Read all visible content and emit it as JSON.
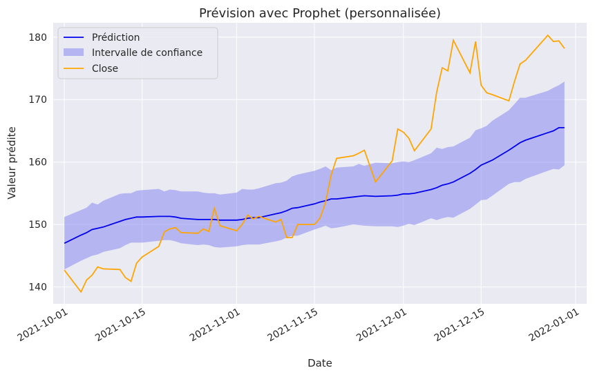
{
  "chart_data": {
    "type": "line",
    "title": "Prévision avec Prophet (personnalisée)",
    "xlabel": "Date",
    "ylabel": "Valeur prédite",
    "xlim": [
      "2021-09-29",
      "2022-01-03"
    ],
    "ylim": [
      137.3,
      182.3
    ],
    "x_ticks": [
      "2021-10-01",
      "2021-10-15",
      "2021-11-01",
      "2021-11-15",
      "2021-12-01",
      "2021-12-15",
      "2022-01-01"
    ],
    "y_ticks": [
      140,
      150,
      160,
      170,
      180
    ],
    "grid": true,
    "legend_position": "top-left",
    "colors": {
      "prediction": "#0000ee",
      "interval": "#8080f0",
      "close": "#ffa500",
      "plot_bg": "#eaeaf2",
      "grid": "#ffffff"
    },
    "legend": [
      "Prédiction",
      "Intervalle de confiance",
      "Close"
    ],
    "series": [
      {
        "name": "Prédiction",
        "x": [
          "2021-10-01",
          "2021-10-04",
          "2021-10-05",
          "2021-10-06",
          "2021-10-07",
          "2021-10-08",
          "2021-10-11",
          "2021-10-12",
          "2021-10-13",
          "2021-10-14",
          "2021-10-15",
          "2021-10-18",
          "2021-10-19",
          "2021-10-20",
          "2021-10-21",
          "2021-10-22",
          "2021-10-25",
          "2021-10-26",
          "2021-10-27",
          "2021-10-28",
          "2021-10-29",
          "2021-11-01",
          "2021-11-02",
          "2021-11-03",
          "2021-11-04",
          "2021-11-05",
          "2021-11-08",
          "2021-11-09",
          "2021-11-10",
          "2021-11-11",
          "2021-11-12",
          "2021-11-15",
          "2021-11-16",
          "2021-11-17",
          "2021-11-18",
          "2021-11-19",
          "2021-11-22",
          "2021-11-23",
          "2021-11-24",
          "2021-11-26",
          "2021-11-29",
          "2021-11-30",
          "2021-12-01",
          "2021-12-02",
          "2021-12-03",
          "2021-12-06",
          "2021-12-07",
          "2021-12-08",
          "2021-12-09",
          "2021-12-10",
          "2021-12-13",
          "2021-12-14",
          "2021-12-15",
          "2021-12-16",
          "2021-12-17",
          "2021-12-20",
          "2021-12-21",
          "2021-12-22",
          "2021-12-23",
          "2021-12-27",
          "2021-12-28",
          "2021-12-29",
          "2021-12-30"
        ],
        "values": [
          147.0,
          148.3,
          148.7,
          149.2,
          149.4,
          149.6,
          150.5,
          150.8,
          151.0,
          151.2,
          151.2,
          151.3,
          151.3,
          151.3,
          151.2,
          151.0,
          150.8,
          150.8,
          150.8,
          150.8,
          150.7,
          150.7,
          150.8,
          151.0,
          151.1,
          151.1,
          151.7,
          151.9,
          152.2,
          152.6,
          152.7,
          153.3,
          153.6,
          153.8,
          154.1,
          154.1,
          154.4,
          154.5,
          154.6,
          154.5,
          154.6,
          154.7,
          154.9,
          154.9,
          155.0,
          155.6,
          155.9,
          156.3,
          156.5,
          156.8,
          158.2,
          158.8,
          159.5,
          159.9,
          160.3,
          161.9,
          162.5,
          163.1,
          163.5,
          164.7,
          165.0,
          165.5,
          165.5
        ]
      },
      {
        "name": "Intervalle de confiance",
        "x": [
          "2021-10-01",
          "2021-10-04",
          "2021-10-05",
          "2021-10-06",
          "2021-10-07",
          "2021-10-08",
          "2021-10-11",
          "2021-10-12",
          "2021-10-13",
          "2021-10-14",
          "2021-10-15",
          "2021-10-18",
          "2021-10-19",
          "2021-10-20",
          "2021-10-21",
          "2021-10-22",
          "2021-10-25",
          "2021-10-26",
          "2021-10-27",
          "2021-10-28",
          "2021-10-29",
          "2021-11-01",
          "2021-11-02",
          "2021-11-03",
          "2021-11-04",
          "2021-11-05",
          "2021-11-08",
          "2021-11-09",
          "2021-11-10",
          "2021-11-11",
          "2021-11-12",
          "2021-11-15",
          "2021-11-16",
          "2021-11-17",
          "2021-11-18",
          "2021-11-19",
          "2021-11-22",
          "2021-11-23",
          "2021-11-24",
          "2021-11-26",
          "2021-11-29",
          "2021-11-30",
          "2021-12-01",
          "2021-12-02",
          "2021-12-03",
          "2021-12-06",
          "2021-12-07",
          "2021-12-08",
          "2021-12-09",
          "2021-12-10",
          "2021-12-13",
          "2021-12-14",
          "2021-12-15",
          "2021-12-16",
          "2021-12-17",
          "2021-12-20",
          "2021-12-21",
          "2021-12-22",
          "2021-12-23",
          "2021-12-27",
          "2021-12-28",
          "2021-12-29",
          "2021-12-30"
        ],
        "lower": [
          142.8,
          144.2,
          144.6,
          145.0,
          145.2,
          145.6,
          146.2,
          146.7,
          147.1,
          147.1,
          147.1,
          147.4,
          147.5,
          147.5,
          147.3,
          147.0,
          146.7,
          146.8,
          146.7,
          146.4,
          146.3,
          146.5,
          146.7,
          146.8,
          146.8,
          146.8,
          147.3,
          147.5,
          147.9,
          148.2,
          148.2,
          149.2,
          149.5,
          149.8,
          149.4,
          149.5,
          150.0,
          149.9,
          149.8,
          149.7,
          149.7,
          149.6,
          149.8,
          150.1,
          149.9,
          151.0,
          150.7,
          151.0,
          151.2,
          151.1,
          152.5,
          153.2,
          153.9,
          154.0,
          154.6,
          156.5,
          156.8,
          156.8,
          157.3,
          158.6,
          158.9,
          158.8,
          159.5
        ],
        "upper": [
          151.2,
          152.3,
          152.7,
          153.5,
          153.2,
          153.8,
          154.9,
          155.0,
          155.0,
          155.4,
          155.5,
          155.7,
          155.3,
          155.6,
          155.5,
          155.3,
          155.3,
          155.1,
          155.0,
          155.0,
          154.8,
          155.1,
          155.7,
          155.6,
          155.6,
          155.8,
          156.6,
          156.7,
          157.0,
          157.7,
          158.0,
          158.6,
          158.9,
          159.3,
          158.7,
          159.1,
          159.3,
          159.7,
          159.4,
          159.9,
          159.8,
          160.0,
          160.1,
          160.0,
          160.3,
          161.4,
          162.3,
          162.1,
          162.4,
          162.5,
          163.9,
          165.1,
          165.4,
          165.8,
          166.6,
          168.3,
          169.3,
          170.3,
          170.3,
          171.4,
          171.9,
          172.3,
          172.9
        ]
      },
      {
        "name": "Close",
        "x": [
          "2021-10-01",
          "2021-10-04",
          "2021-10-05",
          "2021-10-06",
          "2021-10-07",
          "2021-10-08",
          "2021-10-11",
          "2021-10-12",
          "2021-10-13",
          "2021-10-14",
          "2021-10-15",
          "2021-10-18",
          "2021-10-19",
          "2021-10-20",
          "2021-10-21",
          "2021-10-22",
          "2021-10-25",
          "2021-10-26",
          "2021-10-27",
          "2021-10-28",
          "2021-10-29",
          "2021-11-01",
          "2021-11-02",
          "2021-11-03",
          "2021-11-04",
          "2021-11-05",
          "2021-11-08",
          "2021-11-09",
          "2021-11-10",
          "2021-11-11",
          "2021-11-12",
          "2021-11-15",
          "2021-11-16",
          "2021-11-17",
          "2021-11-18",
          "2021-11-19",
          "2021-11-22",
          "2021-11-23",
          "2021-11-24",
          "2021-11-26",
          "2021-11-29",
          "2021-11-30",
          "2021-12-01",
          "2021-12-02",
          "2021-12-03",
          "2021-12-06",
          "2021-12-07",
          "2021-12-08",
          "2021-12-09",
          "2021-12-10",
          "2021-12-13",
          "2021-12-14",
          "2021-12-15",
          "2021-12-16",
          "2021-12-17",
          "2021-12-20",
          "2021-12-21",
          "2021-12-22",
          "2021-12-23",
          "2021-12-27",
          "2021-12-28",
          "2021-12-29",
          "2021-12-30"
        ],
        "values": [
          142.7,
          139.2,
          141.1,
          141.9,
          143.2,
          142.9,
          142.8,
          141.5,
          140.9,
          143.8,
          144.8,
          146.5,
          148.8,
          149.3,
          149.5,
          148.7,
          148.6,
          149.3,
          148.9,
          152.6,
          149.8,
          149.0,
          150.0,
          151.5,
          150.9,
          151.3,
          150.4,
          150.8,
          147.9,
          147.9,
          150.0,
          150.0,
          151.0,
          153.5,
          157.9,
          160.6,
          161.0,
          161.4,
          161.9,
          156.8,
          160.2,
          165.3,
          164.8,
          163.8,
          161.8,
          165.3,
          171.2,
          175.1,
          174.6,
          179.5,
          174.3,
          179.3,
          172.3,
          171.1,
          170.8,
          169.8,
          172.9,
          175.7,
          176.3,
          180.3,
          179.3,
          179.4,
          178.2
        ]
      }
    ]
  }
}
